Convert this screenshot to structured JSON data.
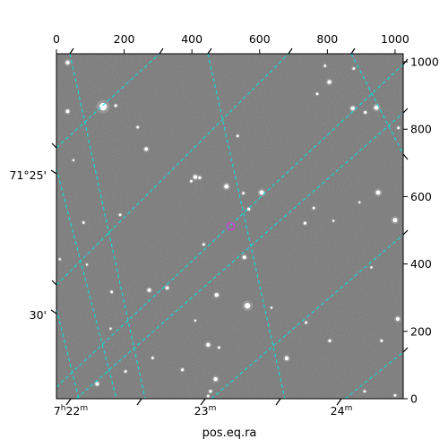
{
  "chart_data": {
    "type": "scatter",
    "title": "",
    "xlabel": "pos.eq.ra",
    "ylabel": "",
    "pixel_axes": {
      "x_top_ticks": [
        0,
        200,
        400,
        600,
        800,
        1000
      ],
      "y_right_ticks": [
        0,
        200,
        400,
        600,
        800,
        1000
      ],
      "xlim": [
        0,
        1024
      ],
      "ylim": [
        0,
        1024
      ]
    },
    "world_axes": {
      "ra_tick_labels": [
        "7h22m",
        "23m",
        "24m"
      ],
      "dec_tick_labels": [
        "71°25'",
        "30'"
      ],
      "grid": true,
      "grid_color": "#00e5e5"
    },
    "marker": {
      "x": 515,
      "y": 512,
      "color": "#cc44cc"
    },
    "image": {
      "background_color": "#7a7a7a"
    },
    "stars": [
      {
        "x": 33,
        "y": 998,
        "r": 2.2
      },
      {
        "x": 138,
        "y": 867,
        "r": 4.2
      },
      {
        "x": 175,
        "y": 870,
        "r": 1.5
      },
      {
        "x": 33,
        "y": 853,
        "r": 2.0
      },
      {
        "x": 240,
        "y": 806,
        "r": 1.4
      },
      {
        "x": 265,
        "y": 741,
        "r": 2.0
      },
      {
        "x": 50,
        "y": 708,
        "r": 1.2
      },
      {
        "x": 410,
        "y": 658,
        "r": 2.2
      },
      {
        "x": 423,
        "y": 656,
        "r": 1.6
      },
      {
        "x": 398,
        "y": 646,
        "r": 1.4
      },
      {
        "x": 502,
        "y": 630,
        "r": 2.5
      },
      {
        "x": 606,
        "y": 612,
        "r": 2.5
      },
      {
        "x": 552,
        "y": 610,
        "r": 1.4
      },
      {
        "x": 568,
        "y": 563,
        "r": 1.6
      },
      {
        "x": 188,
        "y": 546,
        "r": 1.4
      },
      {
        "x": 80,
        "y": 523,
        "r": 1.4
      },
      {
        "x": 734,
        "y": 521,
        "r": 1.6
      },
      {
        "x": 760,
        "y": 566,
        "r": 1.4
      },
      {
        "x": 818,
        "y": 528,
        "r": 1.2
      },
      {
        "x": 895,
        "y": 583,
        "r": 1.2
      },
      {
        "x": 950,
        "y": 612,
        "r": 2.5
      },
      {
        "x": 1000,
        "y": 530,
        "r": 2.5
      },
      {
        "x": 535,
        "y": 780,
        "r": 1.4
      },
      {
        "x": 770,
        "y": 905,
        "r": 1.4
      },
      {
        "x": 793,
        "y": 988,
        "r": 1.4
      },
      {
        "x": 806,
        "y": 940,
        "r": 2.2
      },
      {
        "x": 878,
        "y": 980,
        "r": 1.4
      },
      {
        "x": 875,
        "y": 862,
        "r": 2.2
      },
      {
        "x": 912,
        "y": 850,
        "r": 1.6
      },
      {
        "x": 945,
        "y": 864,
        "r": 2.5
      },
      {
        "x": 1010,
        "y": 804,
        "r": 1.4
      },
      {
        "x": 555,
        "y": 420,
        "r": 2.0
      },
      {
        "x": 435,
        "y": 458,
        "r": 1.4
      },
      {
        "x": 10,
        "y": 414,
        "r": 1.2
      },
      {
        "x": 90,
        "y": 398,
        "r": 1.2
      },
      {
        "x": 163,
        "y": 317,
        "r": 1.4
      },
      {
        "x": 274,
        "y": 322,
        "r": 2.0
      },
      {
        "x": 327,
        "y": 329,
        "r": 1.8
      },
      {
        "x": 473,
        "y": 308,
        "r": 2.2
      },
      {
        "x": 564,
        "y": 276,
        "r": 3.2
      },
      {
        "x": 410,
        "y": 232,
        "r": 1.2
      },
      {
        "x": 448,
        "y": 160,
        "r": 2.2
      },
      {
        "x": 480,
        "y": 152,
        "r": 1.4
      },
      {
        "x": 680,
        "y": 120,
        "r": 2.2
      },
      {
        "x": 737,
        "y": 226,
        "r": 1.4
      },
      {
        "x": 807,
        "y": 172,
        "r": 1.6
      },
      {
        "x": 1008,
        "y": 237,
        "r": 2.2
      },
      {
        "x": 960,
        "y": 172,
        "r": 1.4
      },
      {
        "x": 284,
        "y": 121,
        "r": 1.4
      },
      {
        "x": 372,
        "y": 86,
        "r": 1.6
      },
      {
        "x": 204,
        "y": 81,
        "r": 1.4
      },
      {
        "x": 120,
        "y": 44,
        "r": 2.0
      },
      {
        "x": 470,
        "y": 58,
        "r": 2.2
      },
      {
        "x": 455,
        "y": 22,
        "r": 1.6
      },
      {
        "x": 448,
        "y": 8,
        "r": 1.4
      },
      {
        "x": 910,
        "y": 22,
        "r": 1.4
      },
      {
        "x": 1000,
        "y": 10,
        "r": 1.4
      },
      {
        "x": 930,
        "y": 390,
        "r": 1.2
      },
      {
        "x": 635,
        "y": 270,
        "r": 1.2
      },
      {
        "x": 160,
        "y": 208,
        "r": 1.2
      }
    ]
  }
}
